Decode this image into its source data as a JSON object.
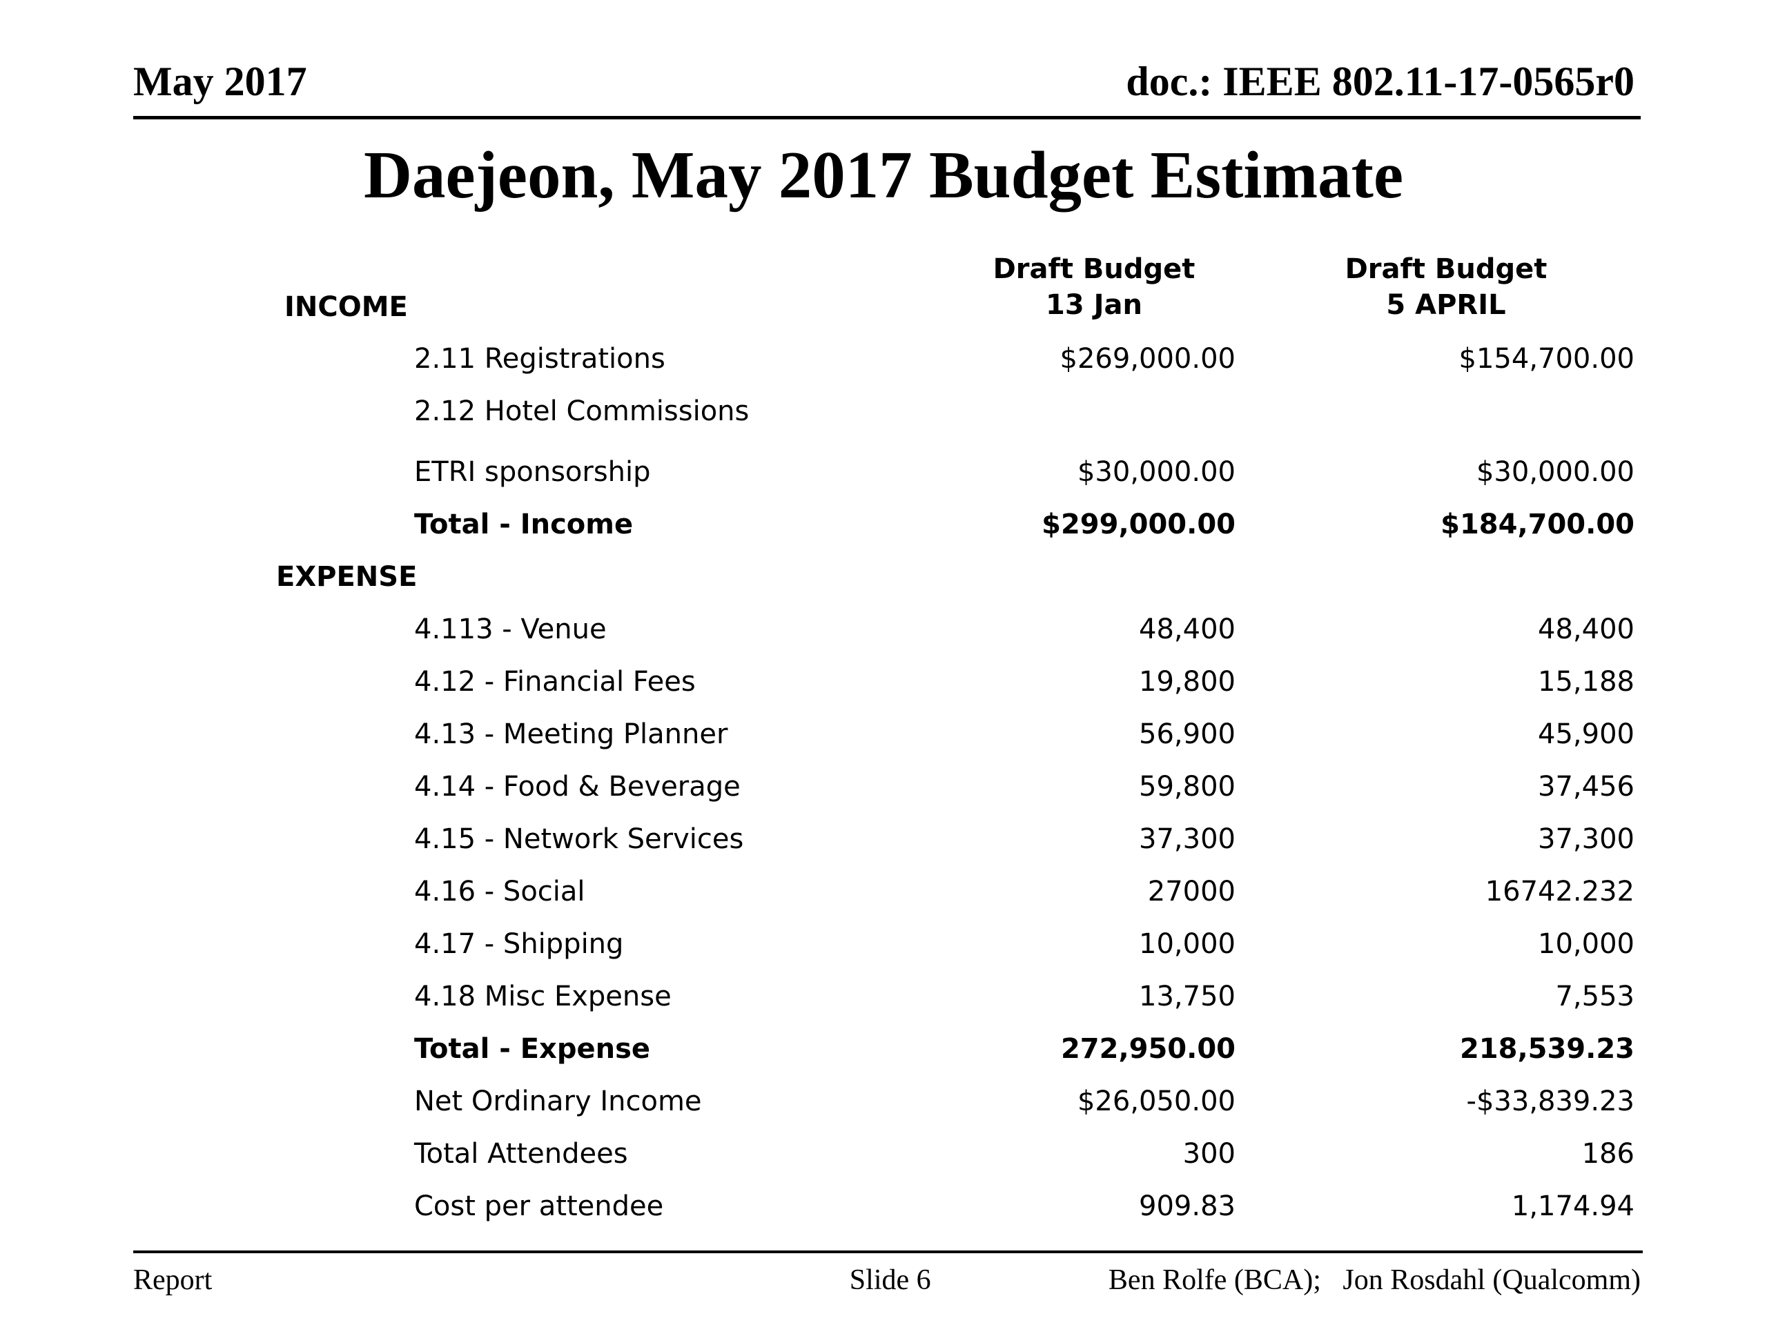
{
  "page": {
    "header_left": "May 2017",
    "header_right": "doc.: IEEE 802.11-17-0565r0",
    "title": "Daejeon, May 2017 Budget Estimate",
    "footer_left": "Report",
    "footer_center": "Slide 6",
    "footer_right": "Ben Rolfe (BCA);   Jon Rosdahl (Qualcomm)"
  },
  "table": {
    "income_label": "INCOME",
    "col1_header": {
      "line1": "Draft Budget",
      "line2": "13 Jan"
    },
    "col2_header": {
      "line1": "Draft Budget",
      "line2": "5 APRIL"
    },
    "rows": [
      {
        "label": "2.11 Registrations",
        "col1": "$269,000.00",
        "col2": "$154,700.00",
        "style": "item"
      },
      {
        "label": "2.12 Hotel Commissions",
        "col1": "",
        "col2": "",
        "style": "item"
      },
      {
        "label": "ETRI sponsorship",
        "col1": "$30,000.00",
        "col2": "$30,000.00",
        "style": "item gap-top"
      },
      {
        "label": "Total - Income",
        "col1": "$299,000.00",
        "col2": "$184,700.00",
        "style": "total"
      },
      {
        "label": "EXPENSE",
        "col1": "",
        "col2": "",
        "style": "section"
      },
      {
        "label": "4.113 - Venue",
        "col1": "48,400",
        "col2": "48,400",
        "style": "item"
      },
      {
        "label": "4.12 - Financial Fees",
        "col1": "19,800",
        "col2": "15,188",
        "style": "item"
      },
      {
        "label": "4.13 - Meeting Planner",
        "col1": "56,900",
        "col2": "45,900",
        "style": "item"
      },
      {
        "label": "4.14 - Food & Beverage",
        "col1": "59,800",
        "col2": "37,456",
        "style": "item"
      },
      {
        "label": "4.15 - Network Services",
        "col1": "37,300",
        "col2": "37,300",
        "style": "item"
      },
      {
        "label": "4.16 - Social",
        "col1": "27000",
        "col2": "16742.232",
        "style": "item"
      },
      {
        "label": "4.17 - Shipping",
        "col1": "10,000",
        "col2": "10,000",
        "style": "item"
      },
      {
        "label": "4.18 Misc Expense",
        "col1": "13,750",
        "col2": "7,553",
        "style": "item"
      },
      {
        "label": "Total - Expense",
        "col1": "272,950.00",
        "col2": "218,539.23",
        "style": "total"
      },
      {
        "label": "Net Ordinary Income",
        "col1": "$26,050.00",
        "col2": "-$33,839.23",
        "style": "item"
      },
      {
        "label": "Total Attendees",
        "col1": "300",
        "col2": "186",
        "style": "item"
      },
      {
        "label": "Cost per attendee",
        "col1": "909.83",
        "col2": "1,174.94",
        "style": "item"
      }
    ]
  }
}
